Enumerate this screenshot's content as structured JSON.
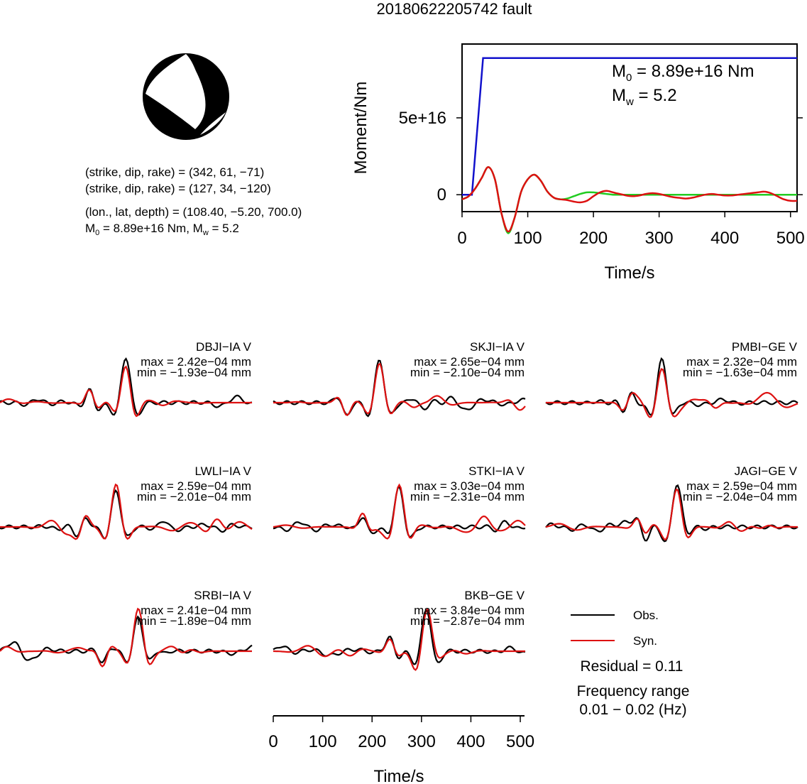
{
  "title": "20180622205742 fault",
  "beachball": {
    "label": "focal-mechanism"
  },
  "fault_info": {
    "line1": "(strike, dip, rake) = (342, 61, −71)",
    "line2": "(strike, dip, rake) = (127, 34, −120)",
    "line3": "(lon., lat, depth) = (108.40, −5.20, 700.0)",
    "m0_text": "M",
    "m0_sub": "0",
    "m0_rest": " = 8.89e+16 Nm, M",
    "mw_sub": "w",
    "mw_rest": " = 5.2"
  },
  "colors": {
    "observed": "#000000",
    "synthetic": "#dd1111",
    "moment": "#1111cc",
    "moment_rate_fit": "#22cc22"
  },
  "legend": {
    "obs": "Obs.",
    "syn": "Syn."
  },
  "residual": "Residual = 0.11",
  "freq_label": "Frequency range",
  "freq_value": "0.01 − 0.02 (Hz)",
  "chart_data": [
    {
      "type": "line",
      "title": "",
      "xlabel": "Time/s",
      "ylabel": "Moment/Nm",
      "xlim": [
        0,
        510
      ],
      "ylim": [
        -1.1e+16,
        9.8e+16
      ],
      "xticks": [
        "0",
        "100",
        "200",
        "300",
        "400",
        "500"
      ],
      "yticks": [
        "0",
        "5e+16"
      ],
      "annotation": {
        "m0_prefix": "M",
        "m0_sub": "0",
        "m0_value": " = 8.89e+16 Nm",
        "mw_prefix": "M",
        "mw_sub": "w",
        "mw_value": " = 5.2"
      },
      "series": [
        {
          "key": "moment",
          "x": [
            0,
            15,
            32,
            510
          ],
          "y": [
            0,
            0,
            8.89e+16,
            8.89e+16
          ]
        },
        {
          "key": "rate_synthetic",
          "x": [
            0,
            10,
            20,
            30,
            40,
            50,
            60,
            70,
            80,
            90,
            100,
            110,
            120,
            130,
            140,
            150,
            160,
            170,
            180,
            190,
            200,
            210,
            220,
            230,
            240,
            250,
            260,
            270,
            280,
            290,
            300,
            310,
            320,
            330,
            340,
            350,
            360,
            370,
            380,
            390,
            400,
            410,
            420,
            430,
            440,
            450,
            460,
            470,
            480,
            490,
            500,
            510
          ],
          "y": [
            -3000000000000000.0,
            -1000000000000000.0,
            4000000000000000.0,
            1.1e+16,
            1.8e+16,
            1e+16,
            -1.2e+16,
            -2.4e+16,
            -1.5e+16,
            2000000000000000.0,
            1e+16,
            1.3e+16,
            9000000000000000.0,
            2000000000000000.0,
            -2000000000000000.0,
            -3000000000000000.0,
            -3500000000000000.0,
            -4500000000000000.0,
            -5000000000000000.0,
            -4000000000000000.0,
            -1000000000000000.0,
            1500000000000000.0,
            2500000000000000.0,
            1500000000000000.0,
            500000000000000.0,
            -500000000000000.0,
            -1000000000000000.0,
            -500000000000000.0,
            500000000000000.0,
            1000000000000000.0,
            500000000000000.0,
            -500000000000000.0,
            -1500000000000000.0,
            -2000000000000000.0,
            -2500000000000000.0,
            -2000000000000000.0,
            -1000000000000000.0,
            0.0,
            500000000000000.0,
            0.0,
            -500000000000000.0,
            -500000000000000.0,
            0.0,
            500000000000000.0,
            1000000000000000.0,
            1500000000000000.0,
            2000000000000000.0,
            1000000000000000.0,
            -1000000000000000.0,
            -3000000000000000.0,
            -4000000000000000.0,
            -4000000000000000.0
          ]
        },
        {
          "key": "rate_fit",
          "x": [
            0,
            10,
            20,
            30,
            40,
            50,
            60,
            70,
            80,
            90,
            100,
            110,
            120,
            130,
            140,
            150,
            160,
            170,
            180,
            190,
            200,
            210,
            220,
            230,
            240,
            250,
            260,
            270,
            280,
            290,
            300,
            310,
            320,
            330,
            340,
            350,
            360,
            370,
            380,
            390,
            400,
            410,
            420,
            430,
            440,
            450,
            460,
            470,
            480,
            490,
            500,
            510
          ],
          "y": [
            -3000000000000000.0,
            -1000000000000000.0,
            4000000000000000.0,
            1.1e+16,
            1.8e+16,
            1e+16,
            -1.2e+16,
            -2.5e+16,
            -1.5e+16,
            2000000000000000.0,
            1e+16,
            1.3e+16,
            9000000000000000.0,
            2000000000000000.0,
            -2000000000000000.0,
            -3000000000000000.0,
            -2500000000000000.0,
            -1000000000000000.0,
            500000000000000.0,
            1500000000000000.0,
            1500000000000000.0,
            1000000000000000.0,
            500000000000000.0,
            0.0,
            0.0,
            0.0,
            0.0,
            0.0,
            0.0,
            0.0,
            0.0,
            0.0,
            0.0,
            0.0,
            0.0,
            0.0,
            0.0,
            0.0,
            0.0,
            0.0,
            0.0,
            0.0,
            0.0,
            0.0,
            0.0,
            0.0,
            0.0,
            0.0,
            0.0,
            0.0,
            0.0,
            0.0
          ]
        }
      ]
    },
    {
      "type": "line",
      "title": "waveform-fits",
      "xlabel": "Time/s",
      "xlim": [
        0,
        510
      ],
      "xticks": [
        "0",
        "100",
        "200",
        "300",
        "400",
        "500"
      ],
      "stations": [
        {
          "name": "DBJI−IA V",
          "max": "max = 2.42e−04 mm",
          "min": "min = −1.93e−04 mm",
          "peak": 255,
          "pol": 1,
          "obsAmp": 1.0,
          "synAmp": 0.95,
          "seed": 1
        },
        {
          "name": "SKJI−IA V",
          "max": "max = 2.65e−04 mm",
          "min": "min = −2.10e−04 mm",
          "peak": 215,
          "pol": 1,
          "obsAmp": 1.0,
          "synAmp": 0.92,
          "seed": 2
        },
        {
          "name": "PMBI−GE V",
          "max": "max = 2.32e−04 mm",
          "min": "min = −1.63e−04 mm",
          "peak": 235,
          "pol": 1,
          "obsAmp": 1.0,
          "synAmp": 0.72,
          "seed": 3
        },
        {
          "name": "LWLI−IA V",
          "max": "max = 2.59e−04 mm",
          "min": "min = −2.01e−04 mm",
          "peak": 235,
          "pol": 1,
          "obsAmp": 0.85,
          "synAmp": 1.0,
          "seed": 4
        },
        {
          "name": "STKI−IA V",
          "max": "max = 3.03e−04 mm",
          "min": "min = −2.31e−04 mm",
          "peak": 255,
          "pol": 1,
          "obsAmp": 0.95,
          "synAmp": 1.0,
          "seed": 5
        },
        {
          "name": "JAGI−GE V",
          "max": "max = 2.59e−04 mm",
          "min": "min = −2.04e−04 mm",
          "peak": 265,
          "pol": 1,
          "obsAmp": 1.0,
          "synAmp": 0.9,
          "seed": 6
        },
        {
          "name": "SRBI−IA V",
          "max": "max = 2.41e−04 mm",
          "min": "min = −1.89e−04 mm",
          "peak": 280,
          "pol": 1,
          "obsAmp": 0.8,
          "synAmp": 1.0,
          "seed": 7
        },
        {
          "name": "BKB−GE V",
          "max": "max = 3.84e−04 mm",
          "min": "min = −2.87e−04 mm",
          "peak": 310,
          "pol": 1,
          "obsAmp": 1.0,
          "synAmp": 0.85,
          "seed": 8
        }
      ]
    }
  ]
}
